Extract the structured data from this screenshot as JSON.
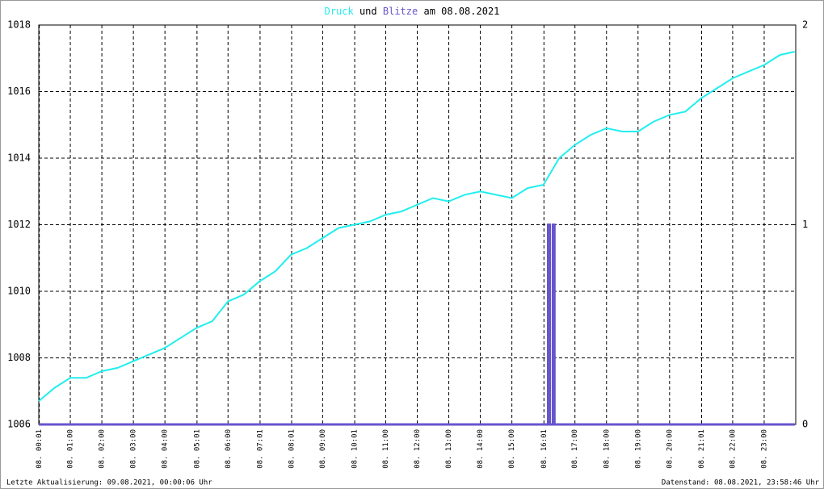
{
  "chart_data": {
    "type": "line",
    "title_joiner": "und",
    "title_suffix": "am 08.08.2021",
    "footer_left": "Letzte Aktualisierung: 09.08.2021, 00:00:06 Uhr",
    "footer_right": "Datenstand: 08.08.2021, 23:58:46 Uhr",
    "xlim": [
      0,
      24
    ],
    "xticks": [
      {
        "value": 0.0167,
        "label": "08. 00:01"
      },
      {
        "value": 1,
        "label": "08. 01:00"
      },
      {
        "value": 2,
        "label": "08. 02:00"
      },
      {
        "value": 3,
        "label": "08. 03:00"
      },
      {
        "value": 4,
        "label": "08. 04:00"
      },
      {
        "value": 5.0167,
        "label": "08. 05:01"
      },
      {
        "value": 6,
        "label": "08. 06:00"
      },
      {
        "value": 7.0167,
        "label": "08. 07:01"
      },
      {
        "value": 8.0167,
        "label": "08. 08:01"
      },
      {
        "value": 9,
        "label": "08. 09:00"
      },
      {
        "value": 10.0167,
        "label": "08. 10:01"
      },
      {
        "value": 11,
        "label": "08. 11:00"
      },
      {
        "value": 12,
        "label": "08. 12:00"
      },
      {
        "value": 13,
        "label": "08. 13:00"
      },
      {
        "value": 14,
        "label": "08. 14:00"
      },
      {
        "value": 15,
        "label": "08. 15:00"
      },
      {
        "value": 16.0167,
        "label": "08. 16:01"
      },
      {
        "value": 17,
        "label": "08. 17:00"
      },
      {
        "value": 18,
        "label": "08. 18:00"
      },
      {
        "value": 19,
        "label": "08. 19:00"
      },
      {
        "value": 20,
        "label": "08. 20:00"
      },
      {
        "value": 21.0167,
        "label": "08. 21:01"
      },
      {
        "value": 22,
        "label": "08. 22:00"
      },
      {
        "value": 23,
        "label": "08. 23:00"
      }
    ],
    "ylim": [
      1006,
      1018
    ],
    "yticks": [
      1006,
      1008,
      1010,
      1012,
      1014,
      1016,
      1018
    ],
    "y2lim": [
      0,
      2
    ],
    "y2ticks": [
      0,
      1,
      2
    ],
    "grid": true,
    "series": [
      {
        "name": "Druck",
        "color": "#22eeee",
        "x": [
          0,
          0.5,
          1,
          1.5,
          2,
          2.5,
          3,
          3.5,
          4,
          4.5,
          5,
          5.5,
          6,
          6.5,
          7,
          7.5,
          8,
          8.5,
          9,
          9.5,
          10,
          10.5,
          11,
          11.5,
          12,
          12.5,
          13,
          13.5,
          14,
          14.5,
          15,
          15.5,
          16,
          16.5,
          17,
          17.5,
          18,
          18.5,
          19,
          19.5,
          20,
          20.5,
          21,
          21.5,
          22,
          22.5,
          23,
          23.5,
          23.97
        ],
        "values": [
          1006.7,
          1007.1,
          1007.4,
          1007.4,
          1007.6,
          1007.7,
          1007.9,
          1008.1,
          1008.3,
          1008.6,
          1008.9,
          1009.1,
          1009.7,
          1009.9,
          1010.3,
          1010.6,
          1011.1,
          1011.3,
          1011.6,
          1011.9,
          1012.0,
          1012.1,
          1012.3,
          1012.4,
          1012.6,
          1012.8,
          1012.7,
          1012.9,
          1013.0,
          1012.9,
          1012.8,
          1013.1,
          1013.2,
          1014.0,
          1014.4,
          1014.7,
          1014.9,
          1014.8,
          1014.8,
          1015.1,
          1015.3,
          1015.4,
          1015.8,
          1016.1,
          1016.4,
          1016.6,
          1016.8,
          1017.1,
          1017.2
        ]
      },
      {
        "name": "Blitze",
        "color": "#6655cc",
        "axis": "y2",
        "x": [
          0,
          16.15,
          16.15,
          16.2,
          16.2,
          16.3,
          16.3,
          16.35,
          16.35,
          23.97
        ],
        "values": [
          0,
          0,
          1,
          1,
          0,
          0,
          1,
          1,
          0,
          0
        ]
      }
    ]
  }
}
